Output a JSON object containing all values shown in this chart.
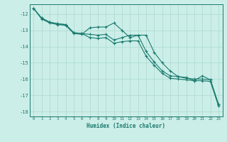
{
  "xlabel": "Humidex (Indice chaleur)",
  "bg_color": "#cceee8",
  "grid_color": "#aad8d0",
  "line_color": "#1a7a6e",
  "xlim": [
    -0.5,
    23.5
  ],
  "ylim": [
    -18.3,
    -11.4
  ],
  "x": [
    0,
    1,
    2,
    3,
    4,
    5,
    6,
    7,
    8,
    9,
    10,
    11,
    12,
    13,
    14,
    15,
    16,
    17,
    18,
    19,
    20,
    21,
    22,
    23
  ],
  "line1": [
    -11.65,
    -12.3,
    -12.55,
    -12.65,
    -12.7,
    -13.2,
    -13.25,
    -12.85,
    -12.8,
    -12.8,
    -12.55,
    -13.0,
    -13.45,
    -13.3,
    -13.3,
    -14.35,
    -15.0,
    -15.5,
    -15.85,
    -15.9,
    -16.1,
    -15.8,
    -16.05,
    -17.55
  ],
  "line2": [
    -11.65,
    -12.25,
    -12.5,
    -12.6,
    -12.65,
    -13.15,
    -13.2,
    -13.25,
    -13.3,
    -13.25,
    -13.6,
    -13.45,
    -13.3,
    -13.3,
    -14.3,
    -14.95,
    -15.5,
    -15.8,
    -15.85,
    -15.95,
    -16.0,
    -16.0,
    -16.05,
    -17.55
  ],
  "line3": [
    -11.65,
    -12.25,
    -12.5,
    -12.6,
    -12.65,
    -13.15,
    -13.2,
    -13.45,
    -13.5,
    -13.45,
    -13.8,
    -13.7,
    -13.65,
    -13.65,
    -14.6,
    -15.15,
    -15.65,
    -15.95,
    -16.0,
    -16.05,
    -16.1,
    -16.1,
    -16.15,
    -17.65
  ],
  "yticks": [
    -12,
    -13,
    -14,
    -15,
    -16,
    -17,
    -18
  ],
  "xticks": [
    0,
    1,
    2,
    3,
    4,
    5,
    6,
    7,
    8,
    9,
    10,
    11,
    12,
    13,
    14,
    15,
    16,
    17,
    18,
    19,
    20,
    21,
    22,
    23
  ]
}
